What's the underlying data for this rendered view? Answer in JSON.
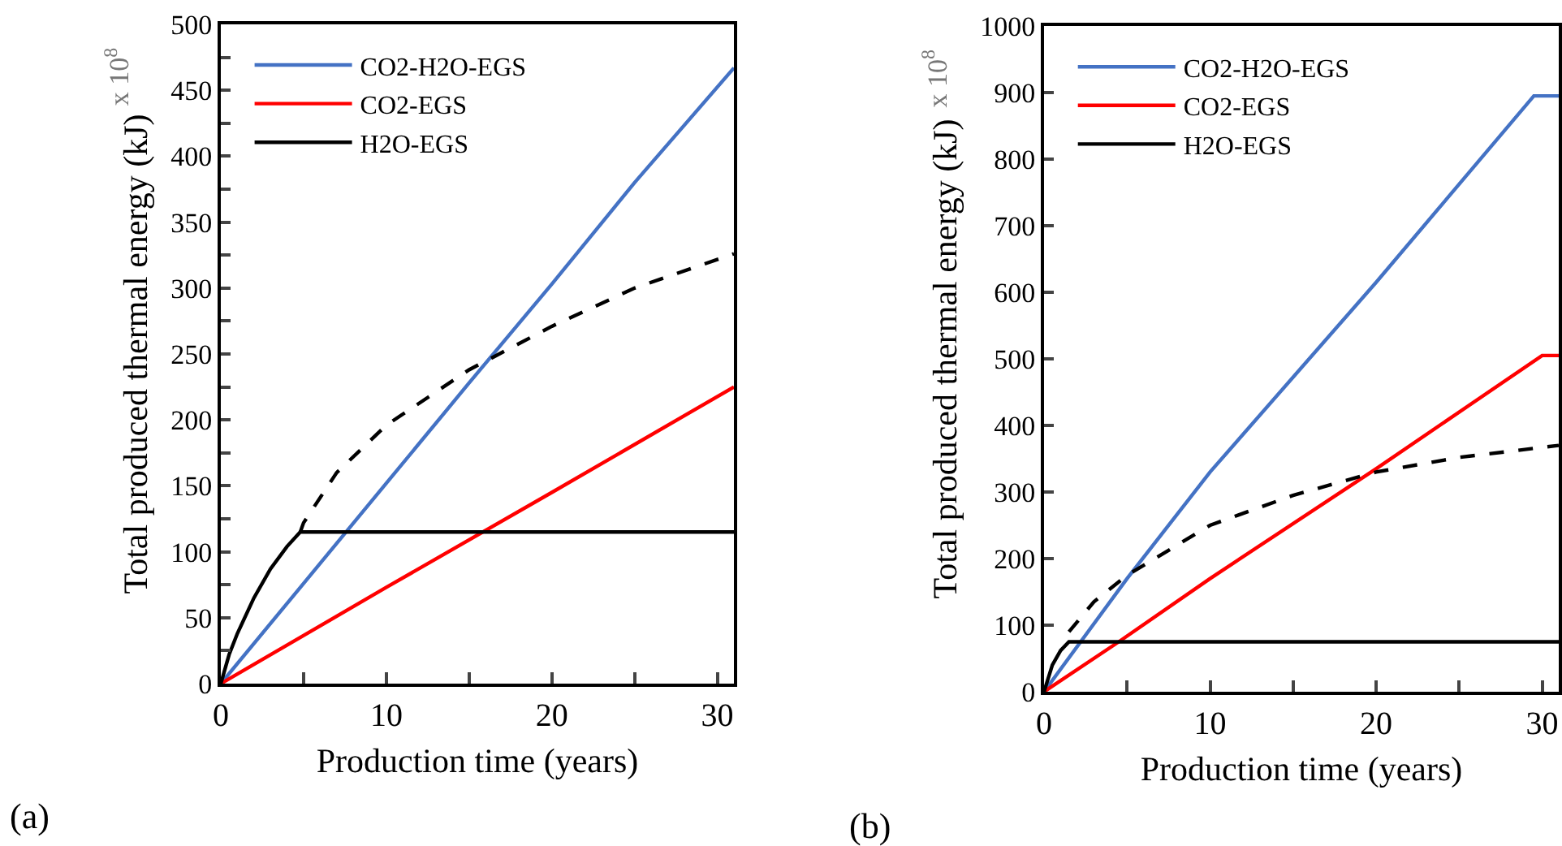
{
  "chart_data": [
    {
      "type": "line",
      "xlabel": "Production time (years)",
      "ylabel": "Total produced thermal energy (kJ)",
      "annotations": [
        "x 10$^{8}$",
        "(a)"
      ],
      "xlim": [
        0,
        31
      ],
      "xticks": [
        0,
        {
          "value": 5,
          "label": null
        },
        10,
        {
          "value": 15,
          "label": null
        },
        20,
        {
          "value": 25,
          "label": null
        },
        30
      ],
      "ylim": [
        0,
        500
      ],
      "yticks": [
        0,
        {
          "value": 25,
          "label": null
        },
        50,
        {
          "value": 75,
          "label": null
        },
        100,
        {
          "value": 125,
          "label": null
        },
        150,
        {
          "value": 175,
          "label": null
        },
        200,
        {
          "value": 225,
          "label": null
        },
        250,
        {
          "value": 275,
          "label": null
        },
        300,
        {
          "value": 325,
          "label": null
        },
        350,
        {
          "value": 375,
          "label": null
        },
        400,
        {
          "value": 425,
          "label": null
        },
        450,
        {
          "value": 475,
          "label": null
        },
        500
      ],
      "legend": "top left",
      "grid": false,
      "line_style": "solid",
      "series": [
        {
          "name": "CO2-H2O-EGS",
          "color": "#4472c4",
          "x": [
            0,
            5,
            10,
            15,
            20,
            25,
            31
          ],
          "values": [
            0,
            76,
            152,
            228,
            303,
            380,
            467
          ]
        },
        {
          "name": "CO2-EGS",
          "color": "#ff0000",
          "x": [
            0,
            10,
            20,
            31
          ],
          "values": [
            0,
            73,
            145,
            225
          ]
        },
        {
          "name": "H2O-EGS",
          "color": "#000000",
          "x": [
            0,
            0.5,
            1,
            2,
            3,
            4,
            4.8,
            31
          ],
          "values": [
            0,
            22,
            38,
            65,
            87,
            104,
            115,
            115
          ]
        },
        {
          "color": "#000000",
          "line_style": "dashed",
          "x": [
            4.8,
            5,
            7,
            10,
            15,
            20,
            25,
            31
          ],
          "values": [
            115,
            122,
            160,
            196,
            238,
            271,
            300,
            326
          ]
        }
      ]
    },
    {
      "type": "line",
      "xlabel": "Production time (years)",
      "ylabel": "Total produced thermal energy (kJ)",
      "annotations": [
        "x 10$^{8}$",
        "(b)"
      ],
      "xlim": [
        0,
        31
      ],
      "xticks": [
        0,
        {
          "value": 5,
          "label": null
        },
        10,
        {
          "value": 15,
          "label": null
        },
        20,
        {
          "value": 25,
          "label": null
        },
        30
      ],
      "ylim": [
        0,
        1000
      ],
      "yticks": [
        0,
        100,
        200,
        300,
        400,
        500,
        600,
        700,
        800,
        900,
        1000
      ],
      "legend": "top left",
      "grid": false,
      "line_style": "solid",
      "series": [
        {
          "name": "CO2-H2O-EGS",
          "color": "#4472c4",
          "x": [
            0,
            5,
            10,
            20,
            29.5,
            31
          ],
          "values": [
            0,
            170,
            330,
            615,
            895,
            895
          ]
        },
        {
          "name": "CO2-EGS",
          "color": "#ff0000",
          "x": [
            0,
            4.5,
            10,
            20,
            30,
            31
          ],
          "values": [
            0,
            75,
            170,
            335,
            505,
            505
          ]
        },
        {
          "name": "H2O-EGS",
          "color": "#000000",
          "x": [
            0,
            0.5,
            1,
            1.5,
            31
          ],
          "values": [
            0,
            40,
            62,
            75,
            75
          ]
        },
        {
          "color": "#000000",
          "line_style": "dashed",
          "x": [
            1.5,
            3,
            5,
            10,
            15,
            20,
            25,
            31
          ],
          "values": [
            90,
            135,
            175,
            250,
            295,
            330,
            352,
            370
          ]
        }
      ]
    }
  ]
}
